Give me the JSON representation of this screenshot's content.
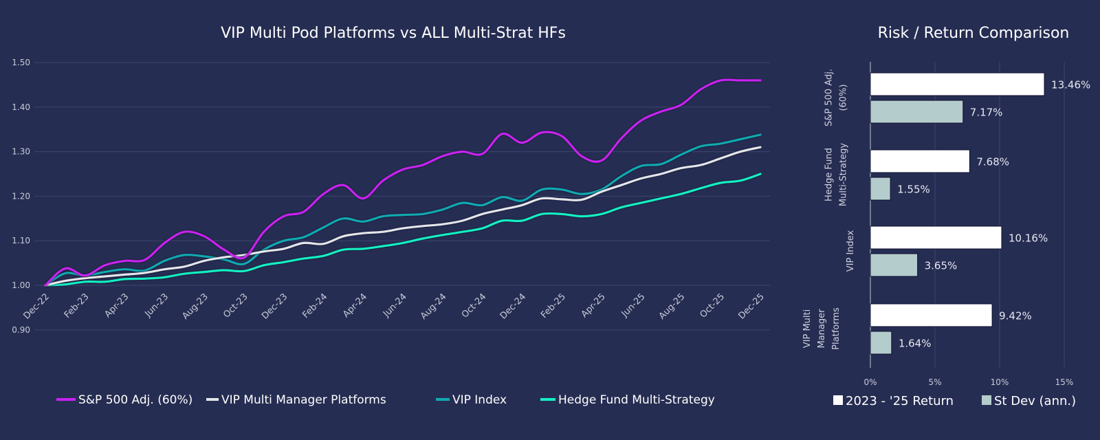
{
  "chart_data": [
    {
      "type": "line",
      "title": "VIP Multi Pod Platforms vs ALL Multi-Strat HFs",
      "ylim": [
        0.9,
        1.5
      ],
      "yticks": [
        "0.90",
        "1.00",
        "1.10",
        "1.20",
        "1.30",
        "1.40",
        "1.50"
      ],
      "grid": true,
      "legend_position": "bottom",
      "x": [
        "Dec-22",
        "Jan-23",
        "Feb-23",
        "Mar-23",
        "Apr-23",
        "May-23",
        "Jun-23",
        "Jul-23",
        "Aug-23",
        "Sep-23",
        "Oct-23",
        "Nov-23",
        "Dec-23",
        "Jan-24",
        "Feb-24",
        "Mar-24",
        "Apr-24",
        "May-24",
        "Jun-24",
        "Jul-24",
        "Aug-24",
        "Sep-24",
        "Oct-24",
        "Nov-24",
        "Dec-24",
        "Jan-25",
        "Feb-25",
        "Mar-25",
        "Apr-25",
        "May-25",
        "Jun-25",
        "Jul-25",
        "Aug-25",
        "Sep-25",
        "Oct-25",
        "Nov-25",
        "Dec-25"
      ],
      "xticks": [
        "Dec-22",
        "Feb-23",
        "Apr-23",
        "Jun-23",
        "Aug-23",
        "Oct-23",
        "Dec-23",
        "Feb-24",
        "Apr-24",
        "Jun-24",
        "Aug-24",
        "Oct-24",
        "Dec-24",
        "Feb-25",
        "Apr-25",
        "Jun-25",
        "Aug-25",
        "Oct-25",
        "Dec-25"
      ],
      "series": [
        {
          "name": "S&P 500 Adj. (60%)",
          "color": "#c822f0",
          "values": [
            1.0,
            1.038,
            1.022,
            1.045,
            1.055,
            1.057,
            1.095,
            1.12,
            1.11,
            1.08,
            1.062,
            1.12,
            1.155,
            1.165,
            1.205,
            1.225,
            1.195,
            1.235,
            1.26,
            1.27,
            1.29,
            1.3,
            1.295,
            1.34,
            1.32,
            1.343,
            1.335,
            1.29,
            1.28,
            1.33,
            1.37,
            1.39,
            1.405,
            1.44,
            1.46,
            1.46,
            1.46
          ]
        },
        {
          "name": "VIP Multi Manager Platforms",
          "color": "#e4e6ea",
          "values": [
            1.0,
            1.01,
            1.016,
            1.02,
            1.024,
            1.028,
            1.036,
            1.042,
            1.055,
            1.063,
            1.068,
            1.076,
            1.082,
            1.095,
            1.093,
            1.11,
            1.117,
            1.12,
            1.128,
            1.133,
            1.137,
            1.145,
            1.16,
            1.17,
            1.18,
            1.195,
            1.193,
            1.192,
            1.21,
            1.225,
            1.24,
            1.25,
            1.263,
            1.27,
            1.285,
            1.3,
            1.31
          ]
        },
        {
          "name": "VIP Index",
          "color": "#10a9b0",
          "values": [
            1.0,
            1.027,
            1.022,
            1.03,
            1.036,
            1.033,
            1.055,
            1.068,
            1.065,
            1.058,
            1.048,
            1.08,
            1.1,
            1.108,
            1.13,
            1.15,
            1.143,
            1.155,
            1.158,
            1.16,
            1.17,
            1.185,
            1.18,
            1.198,
            1.19,
            1.215,
            1.215,
            1.205,
            1.215,
            1.245,
            1.268,
            1.272,
            1.293,
            1.312,
            1.318,
            1.328,
            1.338
          ]
        },
        {
          "name": "Hedge Fund Multi-Strategy",
          "color": "#14efc2",
          "values": [
            1.0,
            1.002,
            1.008,
            1.008,
            1.014,
            1.015,
            1.018,
            1.026,
            1.03,
            1.034,
            1.032,
            1.045,
            1.052,
            1.06,
            1.066,
            1.08,
            1.082,
            1.088,
            1.095,
            1.105,
            1.113,
            1.12,
            1.128,
            1.145,
            1.145,
            1.16,
            1.16,
            1.155,
            1.16,
            1.175,
            1.185,
            1.195,
            1.205,
            1.218,
            1.23,
            1.235,
            1.25
          ]
        }
      ]
    },
    {
      "type": "bar",
      "orientation": "horizontal",
      "title": "Risk / Return Comparison",
      "xlim": [
        0,
        15
      ],
      "xticks": [
        "0%",
        "5%",
        "10%",
        "15%"
      ],
      "grid": true,
      "legend_position": "bottom",
      "categories": [
        [
          "S&P 500 Adj.",
          "(60%)"
        ],
        [
          "Hedge Fund",
          "Multi-Strategy"
        ],
        [
          "VIP Index"
        ],
        [
          "VIP Multi",
          "Manager",
          "Platforms"
        ]
      ],
      "series": [
        {
          "name": "2023 - '25 Return",
          "color": "#ffffff",
          "values": [
            13.46,
            7.68,
            10.16,
            9.42
          ],
          "labels": [
            "13.46%",
            "7.68%",
            "10.16%",
            "9.42%"
          ]
        },
        {
          "name": "St Dev (ann.)",
          "color": "#b5cccd",
          "values": [
            7.17,
            1.55,
            3.65,
            1.64
          ],
          "labels": [
            "7.17%",
            "1.55%",
            "3.65%",
            "1.64%"
          ]
        }
      ]
    }
  ],
  "colors": {
    "background": "#262d52",
    "gridline": "#3d4570"
  }
}
